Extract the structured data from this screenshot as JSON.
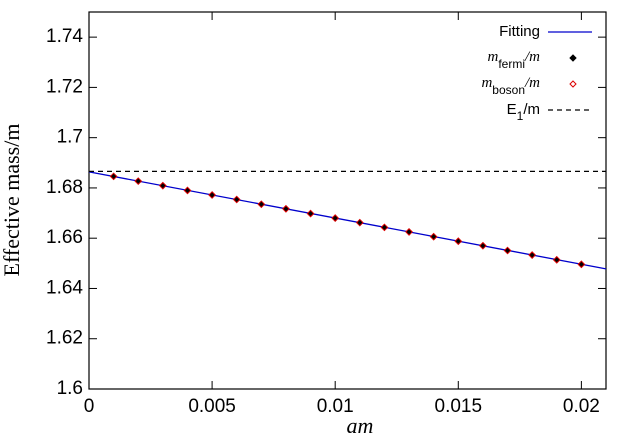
{
  "chart_data": {
    "type": "line",
    "xlabel": "am",
    "ylabel": "Effective mass/m",
    "xlim": [
      0,
      0.021
    ],
    "ylim": [
      1.6,
      1.75
    ],
    "xticks": [
      0,
      0.005,
      0.01,
      0.015,
      0.02
    ],
    "yticks": [
      1.6,
      1.62,
      1.64,
      1.66,
      1.68,
      1.7,
      1.72,
      1.74
    ],
    "legend": "upper right",
    "series": [
      {
        "name": [
          "Fitting"
        ],
        "color": "#0000cc",
        "style": "line",
        "x": [
          0,
          0.021
        ],
        "values": [
          1.6864,
          1.6478
        ]
      },
      {
        "name": [
          "m",
          "fermi",
          "/m"
        ],
        "color": "#000000",
        "style": "diamond",
        "x": [
          0.001,
          0.002,
          0.003,
          0.004,
          0.005,
          0.006,
          0.007,
          0.008,
          0.009,
          0.01,
          0.011,
          0.012,
          0.013,
          0.014,
          0.015,
          0.016,
          0.017,
          0.018,
          0.019,
          0.02
        ],
        "values": [
          1.6846,
          1.6827,
          1.6809,
          1.679,
          1.6772,
          1.6754,
          1.6735,
          1.6717,
          1.6698,
          1.668,
          1.6662,
          1.6643,
          1.6625,
          1.6606,
          1.6588,
          1.657,
          1.6551,
          1.6533,
          1.6514,
          1.6496
        ]
      },
      {
        "name": [
          "m",
          "boson",
          "/m"
        ],
        "color": "#dd0000",
        "style": "open-diamond",
        "x": [
          0.001,
          0.002,
          0.003,
          0.004,
          0.005,
          0.006,
          0.007,
          0.008,
          0.009,
          0.01,
          0.011,
          0.012,
          0.013,
          0.014,
          0.015,
          0.016,
          0.017,
          0.018,
          0.019,
          0.02
        ],
        "values": [
          1.6846,
          1.6827,
          1.6809,
          1.679,
          1.6772,
          1.6754,
          1.6735,
          1.6717,
          1.6698,
          1.668,
          1.6662,
          1.6643,
          1.6625,
          1.6606,
          1.6588,
          1.657,
          1.6551,
          1.6533,
          1.6514,
          1.6496
        ]
      },
      {
        "name": [
          "E",
          "1",
          "/m"
        ],
        "color": "#000000",
        "style": "dashed",
        "x": [
          0,
          0.021
        ],
        "values": [
          1.6866,
          1.6866
        ]
      }
    ]
  }
}
